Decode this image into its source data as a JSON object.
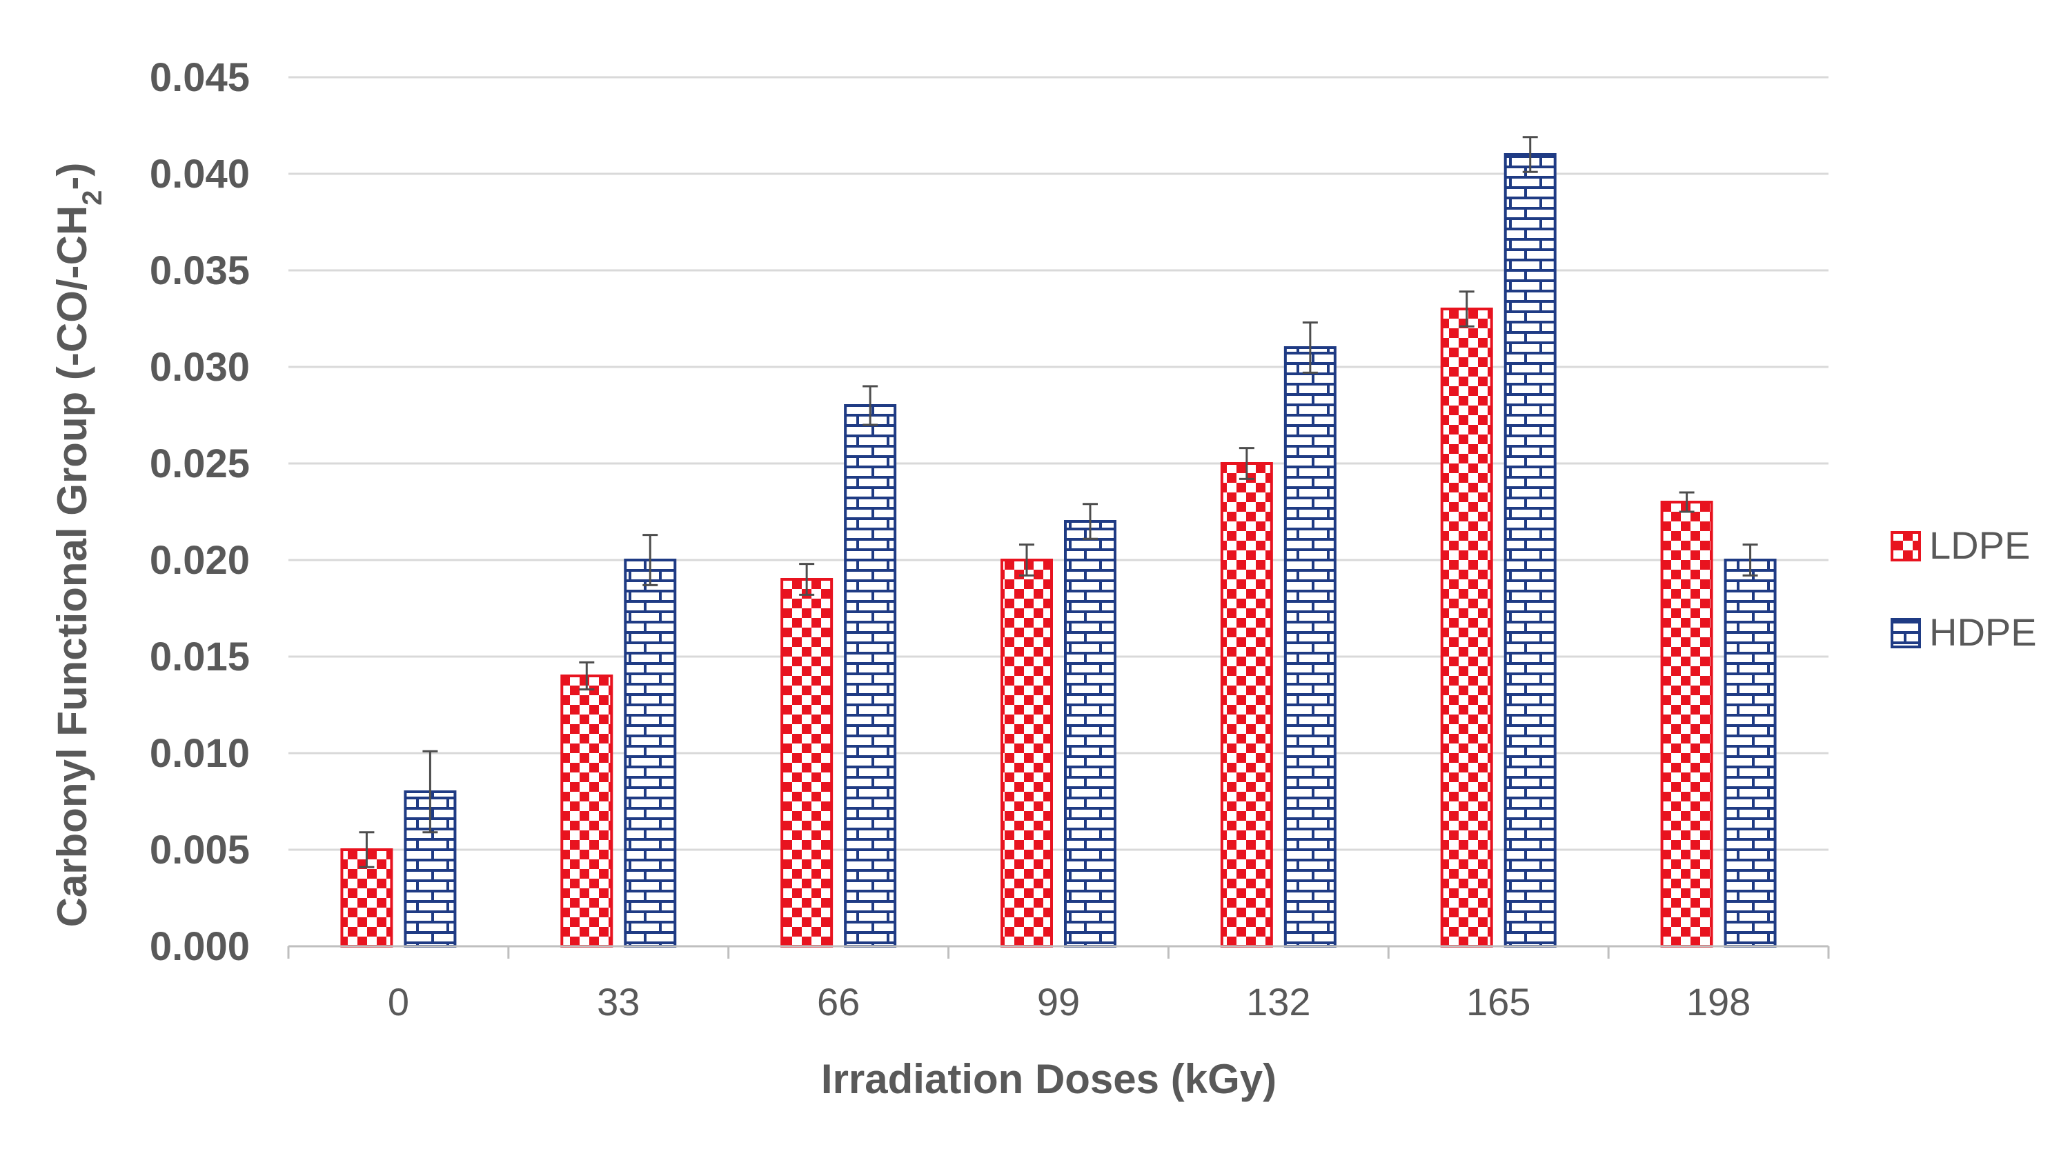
{
  "chart_data": {
    "type": "bar",
    "title": "",
    "xlabel": "Irradiation Doses (kGy)",
    "ylabel_prefix": "Carbonyl Functional Group (-CO/-CH",
    "ylabel_sub": "2",
    "ylabel_suffix": "-)",
    "categories": [
      "0",
      "33",
      "66",
      "99",
      "132",
      "165",
      "198"
    ],
    "ylim": [
      0,
      0.045
    ],
    "yticks": [
      "0.000",
      "0.005",
      "0.010",
      "0.015",
      "0.020",
      "0.025",
      "0.030",
      "0.035",
      "0.040",
      "0.045"
    ],
    "grid": true,
    "legend_position": "right",
    "series": [
      {
        "name": "LDPE",
        "color": "#e8131f",
        "pattern": "checkerboard",
        "values": [
          0.005,
          0.014,
          0.019,
          0.02,
          0.025,
          0.033,
          0.023
        ],
        "errors": [
          0.0009,
          0.0007,
          0.0008,
          0.0008,
          0.0008,
          0.0009,
          0.0005
        ]
      },
      {
        "name": "HDPE",
        "color": "#1f3b84",
        "pattern": "brick",
        "values": [
          0.008,
          0.02,
          0.028,
          0.022,
          0.031,
          0.041,
          0.02
        ],
        "errors": [
          0.0021,
          0.0013,
          0.001,
          0.0009,
          0.0013,
          0.0009,
          0.0008
        ]
      }
    ]
  }
}
